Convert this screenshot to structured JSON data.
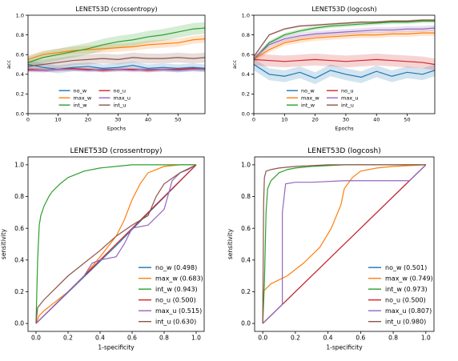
{
  "colors": {
    "no_w": "#1f77b4",
    "max_w": "#ff7f0e",
    "int_w": "#2ca02c",
    "no_u": "#d62728",
    "max_u": "#9467bd",
    "int_u": "#8c564b"
  },
  "chart_data": [
    {
      "type": "line",
      "title": "LENET53D (crossentropy)",
      "xlabel": "Epochs",
      "ylabel": "acc",
      "xlim": [
        0,
        59
      ],
      "ylim": [
        0,
        1.0
      ],
      "xticks": [
        "0",
        "10",
        "20",
        "30",
        "40",
        "50"
      ],
      "yticks": [
        "0.0",
        "0.2",
        "0.4",
        "0.6",
        "0.8",
        "1.0"
      ],
      "legend_position": "lower-center",
      "legend": [
        "no_w",
        "max_w",
        "int_w",
        "no_u",
        "max_u",
        "int_u"
      ],
      "band": true,
      "series": [
        {
          "name": "no_w",
          "color_key": "no_w",
          "x": [
            0,
            5,
            10,
            15,
            20,
            25,
            30,
            35,
            40,
            45,
            50,
            55,
            59
          ],
          "y": [
            0.5,
            0.47,
            0.45,
            0.47,
            0.48,
            0.46,
            0.47,
            0.49,
            0.46,
            0.47,
            0.46,
            0.47,
            0.46
          ],
          "band": 0.04
        },
        {
          "name": "max_w",
          "color_key": "max_w",
          "x": [
            0,
            5,
            10,
            15,
            20,
            25,
            30,
            35,
            40,
            45,
            50,
            55,
            59
          ],
          "y": [
            0.55,
            0.6,
            0.62,
            0.64,
            0.65,
            0.66,
            0.67,
            0.68,
            0.7,
            0.71,
            0.72,
            0.75,
            0.76
          ],
          "band": 0.04
        },
        {
          "name": "int_w",
          "color_key": "int_w",
          "x": [
            0,
            5,
            10,
            15,
            20,
            25,
            30,
            35,
            40,
            45,
            50,
            55,
            59
          ],
          "y": [
            0.52,
            0.57,
            0.6,
            0.63,
            0.66,
            0.7,
            0.73,
            0.75,
            0.78,
            0.8,
            0.83,
            0.86,
            0.87
          ],
          "band": 0.06
        },
        {
          "name": "no_u",
          "color_key": "no_u",
          "x": [
            0,
            5,
            10,
            15,
            20,
            25,
            30,
            35,
            40,
            45,
            50,
            55,
            59
          ],
          "y": [
            0.45,
            0.44,
            0.45,
            0.46,
            0.45,
            0.44,
            0.45,
            0.45,
            0.44,
            0.45,
            0.45,
            0.46,
            0.45
          ],
          "band": 0.02
        },
        {
          "name": "max_u",
          "color_key": "max_u",
          "x": [
            0,
            5,
            10,
            15,
            20,
            25,
            30,
            35,
            40,
            45,
            50,
            55,
            59
          ],
          "y": [
            0.44,
            0.44,
            0.45,
            0.45,
            0.44,
            0.45,
            0.45,
            0.44,
            0.45,
            0.45,
            0.44,
            0.45,
            0.45
          ],
          "band": 0.02
        },
        {
          "name": "int_u",
          "color_key": "int_u",
          "x": [
            0,
            5,
            10,
            15,
            20,
            25,
            30,
            35,
            40,
            45,
            50,
            55,
            59
          ],
          "y": [
            0.48,
            0.5,
            0.52,
            0.54,
            0.55,
            0.56,
            0.55,
            0.57,
            0.56,
            0.56,
            0.57,
            0.56,
            0.57
          ],
          "band": 0.05
        }
      ]
    },
    {
      "type": "line",
      "title": "LENET53D (logcosh)",
      "xlabel": "Epochs",
      "ylabel": "acc",
      "xlim": [
        0,
        59
      ],
      "ylim": [
        0,
        1.0
      ],
      "xticks": [
        "0",
        "10",
        "20",
        "30",
        "40",
        "50"
      ],
      "yticks": [
        "0.0",
        "0.2",
        "0.4",
        "0.6",
        "0.8",
        "1.0"
      ],
      "legend_position": "lower-center",
      "legend": [
        "no_w",
        "max_w",
        "int_w",
        "no_u",
        "max_u",
        "int_u"
      ],
      "band": true,
      "series": [
        {
          "name": "no_w",
          "color_key": "no_w",
          "x": [
            0,
            5,
            10,
            15,
            20,
            25,
            30,
            35,
            40,
            45,
            50,
            55,
            59
          ],
          "y": [
            0.5,
            0.4,
            0.38,
            0.42,
            0.36,
            0.44,
            0.4,
            0.37,
            0.43,
            0.38,
            0.42,
            0.4,
            0.44
          ],
          "band": 0.06
        },
        {
          "name": "max_w",
          "color_key": "max_w",
          "x": [
            0,
            5,
            10,
            15,
            20,
            25,
            30,
            35,
            40,
            45,
            50,
            55,
            59
          ],
          "y": [
            0.55,
            0.65,
            0.72,
            0.75,
            0.77,
            0.78,
            0.79,
            0.8,
            0.8,
            0.81,
            0.81,
            0.82,
            0.82
          ],
          "band": 0.03
        },
        {
          "name": "int_w",
          "color_key": "int_w",
          "x": [
            0,
            5,
            10,
            15,
            20,
            25,
            30,
            35,
            40,
            45,
            50,
            55,
            59
          ],
          "y": [
            0.55,
            0.72,
            0.8,
            0.84,
            0.87,
            0.89,
            0.9,
            0.91,
            0.92,
            0.93,
            0.93,
            0.94,
            0.94
          ],
          "band": 0.02
        },
        {
          "name": "no_u",
          "color_key": "no_u",
          "x": [
            0,
            5,
            10,
            15,
            20,
            25,
            30,
            35,
            40,
            45,
            50,
            55,
            59
          ],
          "y": [
            0.55,
            0.54,
            0.53,
            0.54,
            0.55,
            0.54,
            0.53,
            0.54,
            0.55,
            0.54,
            0.53,
            0.52,
            0.5
          ],
          "band": 0.06
        },
        {
          "name": "max_u",
          "color_key": "max_u",
          "x": [
            0,
            5,
            10,
            15,
            20,
            25,
            30,
            35,
            40,
            45,
            50,
            55,
            59
          ],
          "y": [
            0.56,
            0.7,
            0.76,
            0.79,
            0.81,
            0.82,
            0.83,
            0.84,
            0.85,
            0.85,
            0.86,
            0.86,
            0.87
          ],
          "band": 0.03
        },
        {
          "name": "int_u",
          "color_key": "int_u",
          "x": [
            0,
            5,
            10,
            15,
            20,
            25,
            30,
            35,
            40,
            45,
            50,
            55,
            59
          ],
          "y": [
            0.58,
            0.8,
            0.86,
            0.89,
            0.9,
            0.91,
            0.92,
            0.93,
            0.93,
            0.94,
            0.94,
            0.95,
            0.95
          ],
          "band": 0.01
        }
      ]
    },
    {
      "type": "line",
      "title": "LENET53D (crossentropy)",
      "xlabel": "1-specificity",
      "ylabel": "sensitivity",
      "xlim": [
        -0.05,
        1.05
      ],
      "ylim": [
        -0.05,
        1.05
      ],
      "xticks": [
        "0.0",
        "0.2",
        "0.4",
        "0.6",
        "0.8",
        "1.0"
      ],
      "yticks": [
        "0.0",
        "0.2",
        "0.4",
        "0.6",
        "0.8",
        "1.0"
      ],
      "legend_position": "lower-right",
      "legend": [
        "no_w (0.498)",
        "max_w (0.683)",
        "int_w (0.943)",
        "no_u (0.500)",
        "max_u (0.515)",
        "int_u (0.630)"
      ],
      "band": false,
      "series": [
        {
          "name": "no_w",
          "color_key": "no_w",
          "x": [
            0,
            0.5,
            1
          ],
          "y": [
            0,
            0.49,
            1
          ]
        },
        {
          "name": "max_w",
          "color_key": "max_w",
          "x": [
            0,
            0.02,
            0.05,
            0.1,
            0.2,
            0.3,
            0.4,
            0.5,
            0.55,
            0.6,
            0.65,
            0.7,
            0.8,
            0.9,
            1
          ],
          "y": [
            0,
            0.05,
            0.08,
            0.12,
            0.2,
            0.3,
            0.42,
            0.55,
            0.65,
            0.78,
            0.88,
            0.95,
            0.99,
            1,
            1
          ]
        },
        {
          "name": "int_w",
          "color_key": "int_w",
          "x": [
            0,
            0.01,
            0.02,
            0.03,
            0.05,
            0.08,
            0.1,
            0.15,
            0.2,
            0.3,
            0.4,
            0.5,
            0.6,
            0.8,
            1
          ],
          "y": [
            0,
            0.4,
            0.62,
            0.68,
            0.74,
            0.8,
            0.83,
            0.88,
            0.92,
            0.96,
            0.98,
            0.99,
            1,
            1,
            1
          ]
        },
        {
          "name": "no_u",
          "color_key": "no_u",
          "x": [
            0,
            1
          ],
          "y": [
            0,
            1
          ]
        },
        {
          "name": "max_u",
          "color_key": "max_u",
          "x": [
            0,
            0.3,
            0.35,
            0.4,
            0.5,
            0.55,
            0.6,
            0.7,
            0.8,
            0.85,
            0.9,
            0.95,
            1
          ],
          "y": [
            0,
            0.3,
            0.38,
            0.4,
            0.42,
            0.5,
            0.6,
            0.62,
            0.72,
            0.9,
            0.95,
            0.97,
            1
          ]
        },
        {
          "name": "int_u",
          "color_key": "int_u",
          "x": [
            0,
            0.01,
            0.05,
            0.1,
            0.2,
            0.3,
            0.4,
            0.5,
            0.6,
            0.7,
            0.75,
            0.8,
            0.9,
            1
          ],
          "y": [
            0,
            0.1,
            0.15,
            0.2,
            0.3,
            0.38,
            0.46,
            0.55,
            0.62,
            0.68,
            0.8,
            0.88,
            0.95,
            1
          ]
        }
      ]
    },
    {
      "type": "line",
      "title": "LENET53D (logcosh)",
      "xlabel": "1-specificity",
      "ylabel": "sensitivity",
      "xlim": [
        -0.05,
        1.05
      ],
      "ylim": [
        -0.05,
        1.05
      ],
      "xticks": [
        "0.0",
        "0.2",
        "0.4",
        "0.6",
        "0.8",
        "1.0"
      ],
      "yticks": [
        "0.0",
        "0.2",
        "0.4",
        "0.6",
        "0.8",
        "1.0"
      ],
      "legend_position": "lower-right",
      "legend": [
        "no_w (0.501)",
        "max_w (0.749)",
        "int_w (0.973)",
        "no_u (0.500)",
        "max_u (0.807)",
        "int_u (0.980)"
      ],
      "band": false,
      "series": [
        {
          "name": "no_w",
          "color_key": "no_w",
          "x": [
            0,
            0.5,
            1
          ],
          "y": [
            0,
            0.5,
            1
          ]
        },
        {
          "name": "max_w",
          "color_key": "max_w",
          "x": [
            0,
            0.001,
            0.05,
            0.15,
            0.25,
            0.35,
            0.42,
            0.48,
            0.5,
            0.55,
            0.6,
            0.7,
            0.8,
            1
          ],
          "y": [
            0,
            0.2,
            0.25,
            0.3,
            0.38,
            0.48,
            0.6,
            0.75,
            0.85,
            0.92,
            0.96,
            0.98,
            0.99,
            1
          ]
        },
        {
          "name": "int_w",
          "color_key": "int_w",
          "x": [
            0,
            0.01,
            0.02,
            0.03,
            0.05,
            0.08,
            0.1,
            0.15,
            0.2,
            0.3,
            0.5,
            0.7,
            1
          ],
          "y": [
            0,
            0.25,
            0.7,
            0.85,
            0.9,
            0.93,
            0.95,
            0.97,
            0.98,
            0.99,
            1,
            1,
            1
          ]
        },
        {
          "name": "no_u",
          "color_key": "no_u",
          "x": [
            0,
            1
          ],
          "y": [
            0,
            1
          ]
        },
        {
          "name": "max_u",
          "color_key": "max_u",
          "x": [
            0,
            0.12,
            0.12,
            0.14,
            0.2,
            0.3,
            0.5,
            0.7,
            0.9,
            0.95,
            1
          ],
          "y": [
            0,
            0.12,
            0.7,
            0.88,
            0.89,
            0.89,
            0.9,
            0.9,
            0.9,
            0.95,
            1
          ]
        },
        {
          "name": "int_u",
          "color_key": "int_u",
          "x": [
            0,
            0.005,
            0.01,
            0.02,
            0.05,
            0.1,
            0.2,
            0.4,
            0.6,
            1
          ],
          "y": [
            0,
            0.75,
            0.92,
            0.96,
            0.97,
            0.98,
            0.99,
            1,
            1,
            1
          ]
        }
      ]
    }
  ]
}
